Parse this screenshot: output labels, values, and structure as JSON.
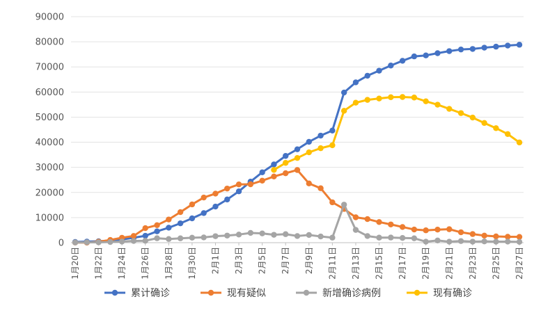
{
  "chart_data": {
    "type": "line",
    "title": "",
    "xlabel": "",
    "ylabel": "",
    "ylim": [
      0,
      90000
    ],
    "y_ticks": [
      0,
      10000,
      20000,
      30000,
      40000,
      50000,
      60000,
      70000,
      80000,
      90000
    ],
    "grid": "horizontal",
    "legend_position": "bottom",
    "categories": [
      "1月20日",
      "1月21日",
      "1月22日",
      "1月23日",
      "1月24日",
      "1月25日",
      "1月26日",
      "1月27日",
      "1月28日",
      "1月29日",
      "1月30日",
      "1月31日",
      "2月1日",
      "2月2日",
      "2月3日",
      "2月4日",
      "2月5日",
      "2月6日",
      "2月7日",
      "2月8日",
      "2月9日",
      "2月10日",
      "2月11日",
      "2月12日",
      "2月13日",
      "2月14日",
      "2月15日",
      "2月16日",
      "2月17日",
      "2月18日",
      "2月19日",
      "2月20日",
      "2月21日",
      "2月22日",
      "2月23日",
      "2月24日",
      "2月25日",
      "2月26日",
      "2月27日"
    ],
    "x_tick_labels": [
      "1月20日",
      "1月22日",
      "1月24日",
      "1月26日",
      "1月28日",
      "1月30日",
      "2月1日",
      "2月3日",
      "2月5日",
      "2月7日",
      "2月9日",
      "2月11日",
      "2月13日",
      "2月15日",
      "2月17日",
      "2月19日",
      "2月21日",
      "2月23日",
      "2月25日",
      "2月27日"
    ],
    "series": [
      {
        "name": "累计确诊",
        "color": "#4472C4",
        "values": [
          291,
          440,
          571,
          830,
          1287,
          1975,
          2744,
          4515,
          5974,
          7711,
          9692,
          11791,
          14380,
          17205,
          20438,
          24324,
          28018,
          31161,
          34546,
          37198,
          40171,
          42638,
          44653,
          59804,
          63851,
          66492,
          68500,
          70548,
          72436,
          74185,
          74576,
          75465,
          76288,
          76936,
          77150,
          77658,
          78064,
          78497,
          78824
        ]
      },
      {
        "name": "现有疑似",
        "color": "#ED7D31",
        "values": [
          54,
          37,
          393,
          1072,
          1965,
          2684,
          5794,
          6973,
          9239,
          12167,
          15238,
          17988,
          19544,
          21558,
          23214,
          23260,
          24702,
          26359,
          27657,
          28942,
          23589,
          21675,
          16067,
          13435,
          10109,
          9403,
          8228,
          7264,
          6242,
          5248,
          4922,
          5206,
          5365,
          4148,
          3434,
          2824,
          2491,
          2358,
          2308
        ]
      },
      {
        "name": "新增确诊病例",
        "color": "#A5A5A5",
        "values": [
          77,
          149,
          131,
          259,
          444,
          688,
          769,
          1771,
          1459,
          1737,
          1982,
          2102,
          2590,
          2829,
          3235,
          3887,
          3694,
          3143,
          3399,
          2656,
          3062,
          2478,
          2015,
          15152,
          5090,
          2641,
          2009,
          2048,
          1886,
          1749,
          394,
          889,
          397,
          648,
          409,
          508,
          406,
          433,
          327
        ]
      },
      {
        "name": "现有确诊",
        "color": "#FFC000",
        "values": [
          null,
          null,
          null,
          null,
          null,
          null,
          null,
          null,
          null,
          null,
          null,
          null,
          null,
          null,
          null,
          null,
          null,
          28985,
          31774,
          33738,
          35982,
          37626,
          38800,
          52526,
          55748,
          56873,
          57416,
          57934,
          58016,
          57805,
          56303,
          54965,
          53284,
          51606,
          49824,
          47672,
          45604,
          43258,
          39919
        ]
      }
    ]
  }
}
